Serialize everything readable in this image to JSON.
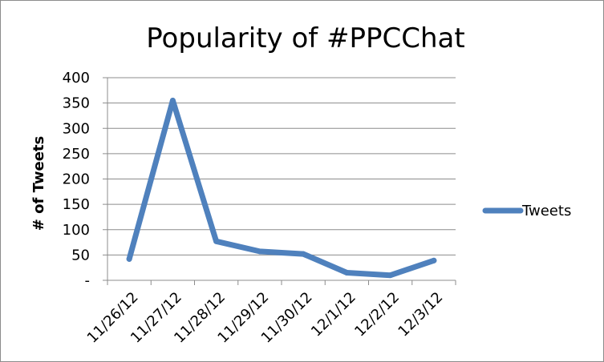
{
  "chart_data": {
    "type": "line",
    "title": "Popularity of #PPCChat",
    "ylabel": "# of Tweets",
    "xlabel": "",
    "categories": [
      "11/26/12",
      "11/27/12",
      "11/28/12",
      "11/29/12",
      "11/30/12",
      "12/1/12",
      "12/2/12",
      "12/3/12"
    ],
    "y_ticks": [
      "-",
      "50",
      "100",
      "150",
      "200",
      "250",
      "300",
      "350",
      "400"
    ],
    "ylim": [
      0,
      400
    ],
    "grid": true,
    "legend_position": "right",
    "series": [
      {
        "name": "Tweets",
        "color": "#4f81bd",
        "values": [
          42,
          355,
          77,
          57,
          52,
          15,
          10,
          39
        ]
      }
    ]
  }
}
